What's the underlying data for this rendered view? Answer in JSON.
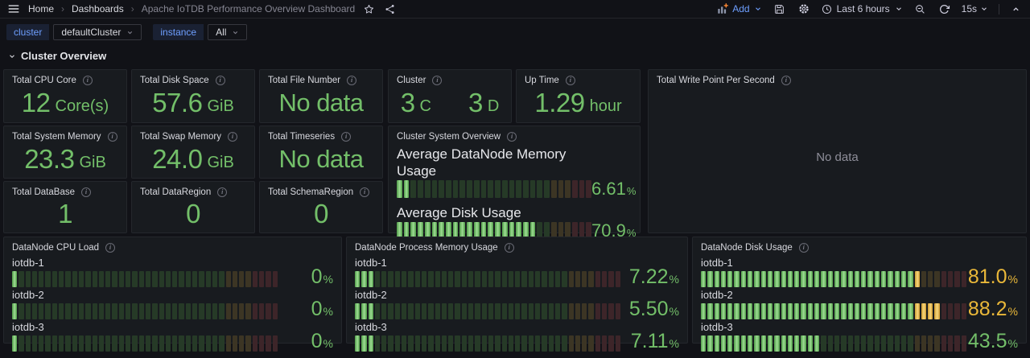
{
  "nav": {
    "breadcrumb": {
      "home": "Home",
      "dashboards": "Dashboards",
      "current": "Apache IoTDB Performance Overview Dashboard"
    },
    "add_label": "Add",
    "time_range": "Last 6 hours",
    "refresh_interval": "15s"
  },
  "variables": {
    "cluster": {
      "label": "cluster",
      "value": "defaultCluster"
    },
    "instance": {
      "label": "instance",
      "value": "All"
    }
  },
  "section_title": "Cluster Overview",
  "colors": {
    "green": "#73BF69",
    "yellow": "#EAB839",
    "blue": "#6E9FFF"
  },
  "gauge": {
    "max": 100,
    "thresholds": {
      "yellow": 80,
      "red": 90
    }
  },
  "panels": {
    "total_cpu_core": {
      "title": "Total CPU Core",
      "value": "12",
      "suffix": "Core(s)"
    },
    "total_disk_space": {
      "title": "Total Disk Space",
      "value": "57.6",
      "suffix": "GiB"
    },
    "total_file_number": {
      "title": "Total File Number",
      "value": "No data",
      "suffix": ""
    },
    "cluster": {
      "title": "Cluster",
      "stats": [
        {
          "value": "3",
          "suffix": "C"
        },
        {
          "value": "3",
          "suffix": "D"
        }
      ]
    },
    "up_time": {
      "title": "Up Time",
      "value": "1.29",
      "suffix": "hour"
    },
    "total_write_point": {
      "title": "Total Write Point Per Second",
      "no_data_text": "No data"
    },
    "total_system_memory": {
      "title": "Total System Memory",
      "value": "23.3",
      "suffix": "GiB"
    },
    "total_swap_memory": {
      "title": "Total Swap Memory",
      "value": "24.0",
      "suffix": "GiB"
    },
    "total_timeseries": {
      "title": "Total Timeseries",
      "value": "No data",
      "suffix": ""
    },
    "cluster_system_overview": {
      "title": "Cluster System Overview",
      "rows": [
        {
          "label": "Average DataNode Memory Usage",
          "value": 6.61,
          "display": "6.61",
          "unit": "%",
          "color": "green"
        },
        {
          "label": "Average Disk Usage",
          "value": 70.9,
          "display": "70.9",
          "unit": "%",
          "color": "green"
        }
      ]
    },
    "total_database": {
      "title": "Total DataBase",
      "value": "1",
      "suffix": ""
    },
    "total_dataregion": {
      "title": "Total DataRegion",
      "value": "0",
      "suffix": ""
    },
    "total_schemaregion": {
      "title": "Total SchemaRegion",
      "value": "0",
      "suffix": ""
    },
    "datanode_cpu_load": {
      "title": "DataNode CPU Load",
      "rows": [
        {
          "label": "iotdb-1",
          "value": 0,
          "display": "0",
          "unit": "%",
          "color": "green"
        },
        {
          "label": "iotdb-2",
          "value": 0,
          "display": "0",
          "unit": "%",
          "color": "green"
        },
        {
          "label": "iotdb-3",
          "value": 0,
          "display": "0",
          "unit": "%",
          "color": "green"
        }
      ]
    },
    "datanode_process_memory_usage": {
      "title": "DataNode Process Memory Usage",
      "rows": [
        {
          "label": "iotdb-1",
          "value": 7.22,
          "display": "7.22",
          "unit": "%",
          "color": "green"
        },
        {
          "label": "iotdb-2",
          "value": 5.5,
          "display": "5.50",
          "unit": "%",
          "color": "green"
        },
        {
          "label": "iotdb-3",
          "value": 7.11,
          "display": "7.11",
          "unit": "%",
          "color": "green"
        }
      ]
    },
    "datanode_disk_usage": {
      "title": "DataNode Disk Usage",
      "rows": [
        {
          "label": "iotdb-1",
          "value": 81.0,
          "display": "81.0",
          "unit": "%",
          "color": "yellow"
        },
        {
          "label": "iotdb-2",
          "value": 88.2,
          "display": "88.2",
          "unit": "%",
          "color": "yellow"
        },
        {
          "label": "iotdb-3",
          "value": 43.5,
          "display": "43.5",
          "unit": "%",
          "color": "green"
        }
      ]
    }
  }
}
